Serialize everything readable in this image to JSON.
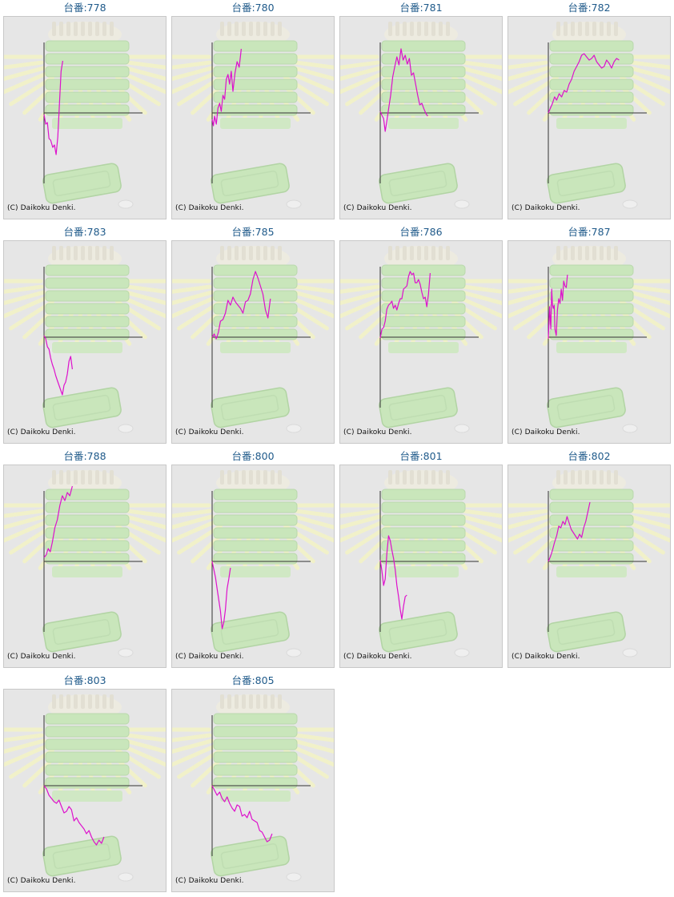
{
  "credit_text": "(C) Daikoku Denki.",
  "colors": {
    "line": "#dd11cc",
    "axis": "#333333",
    "title": "#1f5a8a",
    "panel_bg": "#e6e6e6",
    "art_green": "#c4e6b4",
    "art_rays": "#f4f4c4"
  },
  "chart_data": [
    {
      "type": "line",
      "title": "台番:778",
      "x": [
        0,
        4,
        8,
        12,
        16,
        21,
        25,
        29,
        33,
        37,
        41,
        45
      ],
      "values": [
        -2,
        -14,
        -12,
        -32,
        -34,
        -43,
        -40,
        -52,
        -30,
        10,
        52,
        65
      ]
    },
    {
      "type": "line",
      "title": "台番:780",
      "x": [
        0,
        3,
        6,
        10,
        14,
        18,
        22,
        26,
        30,
        34,
        38,
        42,
        46,
        50,
        55,
        60,
        65,
        70
      ],
      "values": [
        -8,
        -16,
        -4,
        -14,
        6,
        12,
        2,
        22,
        17,
        42,
        48,
        36,
        52,
        27,
        50,
        64,
        57,
        80
      ]
    },
    {
      "type": "line",
      "title": "台番:781",
      "x": [
        0,
        4,
        8,
        12,
        16,
        21,
        25,
        30,
        35,
        40,
        45,
        50,
        55,
        60,
        65,
        70,
        75,
        80,
        85,
        90,
        95,
        100,
        105,
        110,
        114
      ],
      "values": [
        2,
        -3,
        -7,
        -23,
        -10,
        8,
        22,
        45,
        58,
        70,
        60,
        80,
        66,
        72,
        61,
        68,
        47,
        50,
        36,
        22,
        10,
        12,
        5,
        -1,
        -4
      ]
    },
    {
      "type": "line",
      "title": "台番:782",
      "x": [
        0,
        5,
        10,
        15,
        20,
        26,
        32,
        38,
        44,
        50,
        56,
        62,
        68,
        74,
        80,
        86,
        92,
        98,
        104,
        110,
        116,
        122,
        128,
        134,
        140,
        146,
        152,
        158,
        164,
        170
      ],
      "values": [
        0,
        6,
        12,
        20,
        16,
        24,
        20,
        28,
        26,
        36,
        42,
        52,
        58,
        64,
        72,
        74,
        70,
        66,
        68,
        72,
        64,
        60,
        56,
        58,
        66,
        62,
        56,
        64,
        68,
        66
      ]
    },
    {
      "type": "line",
      "title": "台番:783",
      "x": [
        0,
        4,
        8,
        12,
        16,
        20,
        24,
        28,
        32,
        36,
        40,
        44,
        48,
        52,
        56,
        60,
        64,
        68
      ],
      "values": [
        2,
        -2,
        -12,
        -15,
        -26,
        -34,
        -40,
        -48,
        -54,
        -60,
        -66,
        -72,
        -60,
        -56,
        -46,
        -30,
        -24,
        -40
      ]
    },
    {
      "type": "line",
      "title": "台番:785",
      "x": [
        0,
        5,
        10,
        15,
        20,
        26,
        32,
        38,
        44,
        50,
        56,
        62,
        68,
        74,
        80,
        86,
        92,
        98,
        104,
        110,
        116,
        122,
        128,
        134,
        140
      ],
      "values": [
        0,
        4,
        -2,
        6,
        20,
        22,
        30,
        46,
        40,
        50,
        44,
        40,
        36,
        30,
        44,
        46,
        54,
        72,
        82,
        74,
        64,
        54,
        34,
        24,
        48
      ]
    },
    {
      "type": "line",
      "title": "台番:786",
      "x": [
        0,
        4,
        8,
        12,
        16,
        20,
        24,
        28,
        32,
        36,
        40,
        44,
        48,
        52,
        56,
        60,
        64,
        68,
        72,
        76,
        80,
        84,
        88,
        92,
        96,
        100,
        104,
        108,
        112,
        116,
        120
      ],
      "values": [
        -1,
        10,
        12,
        20,
        35,
        40,
        42,
        45,
        36,
        40,
        34,
        42,
        48,
        48,
        60,
        62,
        64,
        76,
        82,
        78,
        80,
        68,
        68,
        72,
        66,
        56,
        48,
        50,
        38,
        54,
        80
      ]
    },
    {
      "type": "line",
      "title": "台番:787",
      "x": [
        0,
        3,
        6,
        8,
        10,
        12,
        14,
        16,
        19,
        22,
        25,
        28,
        31,
        34,
        37,
        40,
        43,
        46
      ],
      "values": [
        -2,
        38,
        10,
        60,
        40,
        36,
        40,
        10,
        2,
        34,
        48,
        42,
        60,
        46,
        70,
        64,
        62,
        78
      ]
    },
    {
      "type": "line",
      "title": "台番:788",
      "x": [
        0,
        5,
        10,
        15,
        20,
        26,
        32,
        38,
        44,
        50,
        56,
        62,
        68
      ],
      "values": [
        5,
        8,
        16,
        12,
        24,
        42,
        52,
        70,
        82,
        76,
        86,
        82,
        94
      ]
    },
    {
      "type": "line",
      "title": "台番:800",
      "x": [
        0,
        4,
        8,
        12,
        16,
        20,
        24,
        28,
        32,
        36,
        40,
        44
      ],
      "values": [
        0,
        -10,
        -20,
        -34,
        -48,
        -62,
        -84,
        -76,
        -60,
        -34,
        -22,
        -8
      ]
    },
    {
      "type": "line",
      "title": "台番:801",
      "x": [
        0,
        4,
        8,
        12,
        16,
        20,
        24,
        28,
        32,
        36,
        40,
        44,
        48,
        52,
        56,
        60,
        64
      ],
      "values": [
        2,
        -12,
        -30,
        -22,
        10,
        32,
        26,
        14,
        4,
        -10,
        -30,
        -44,
        -60,
        -72,
        -56,
        -44,
        -42
      ]
    },
    {
      "type": "line",
      "title": "台番:802",
      "x": [
        0,
        5,
        10,
        15,
        20,
        25,
        30,
        35,
        40,
        45,
        50,
        55,
        60,
        65,
        70,
        75,
        80,
        85,
        90,
        95,
        100
      ],
      "values": [
        0,
        6,
        14,
        24,
        32,
        44,
        42,
        50,
        46,
        56,
        48,
        40,
        36,
        32,
        28,
        34,
        30,
        42,
        50,
        62,
        74
      ]
    },
    {
      "type": "line",
      "title": "台番:803",
      "x": [
        0,
        6,
        12,
        18,
        24,
        30,
        36,
        42,
        48,
        54,
        60,
        66,
        72,
        78,
        84,
        90,
        96,
        102,
        108,
        114,
        120,
        126,
        132,
        138,
        144
      ],
      "values": [
        0,
        -4,
        -12,
        -16,
        -20,
        -22,
        -18,
        -26,
        -34,
        -32,
        -26,
        -30,
        -44,
        -40,
        -46,
        -50,
        -54,
        -60,
        -56,
        -64,
        -70,
        -74,
        -68,
        -72,
        -64
      ]
    },
    {
      "type": "line",
      "title": "台番:805",
      "x": [
        0,
        6,
        12,
        18,
        24,
        30,
        36,
        42,
        48,
        54,
        60,
        66,
        72,
        78,
        84,
        90,
        96,
        102,
        108,
        114,
        120,
        126,
        132,
        138,
        144
      ],
      "values": [
        0,
        -6,
        -12,
        -8,
        -16,
        -20,
        -14,
        -22,
        -28,
        -32,
        -24,
        -26,
        -38,
        -36,
        -40,
        -32,
        -42,
        -44,
        -46,
        -56,
        -58,
        -64,
        -70,
        -68,
        -60
      ]
    }
  ]
}
